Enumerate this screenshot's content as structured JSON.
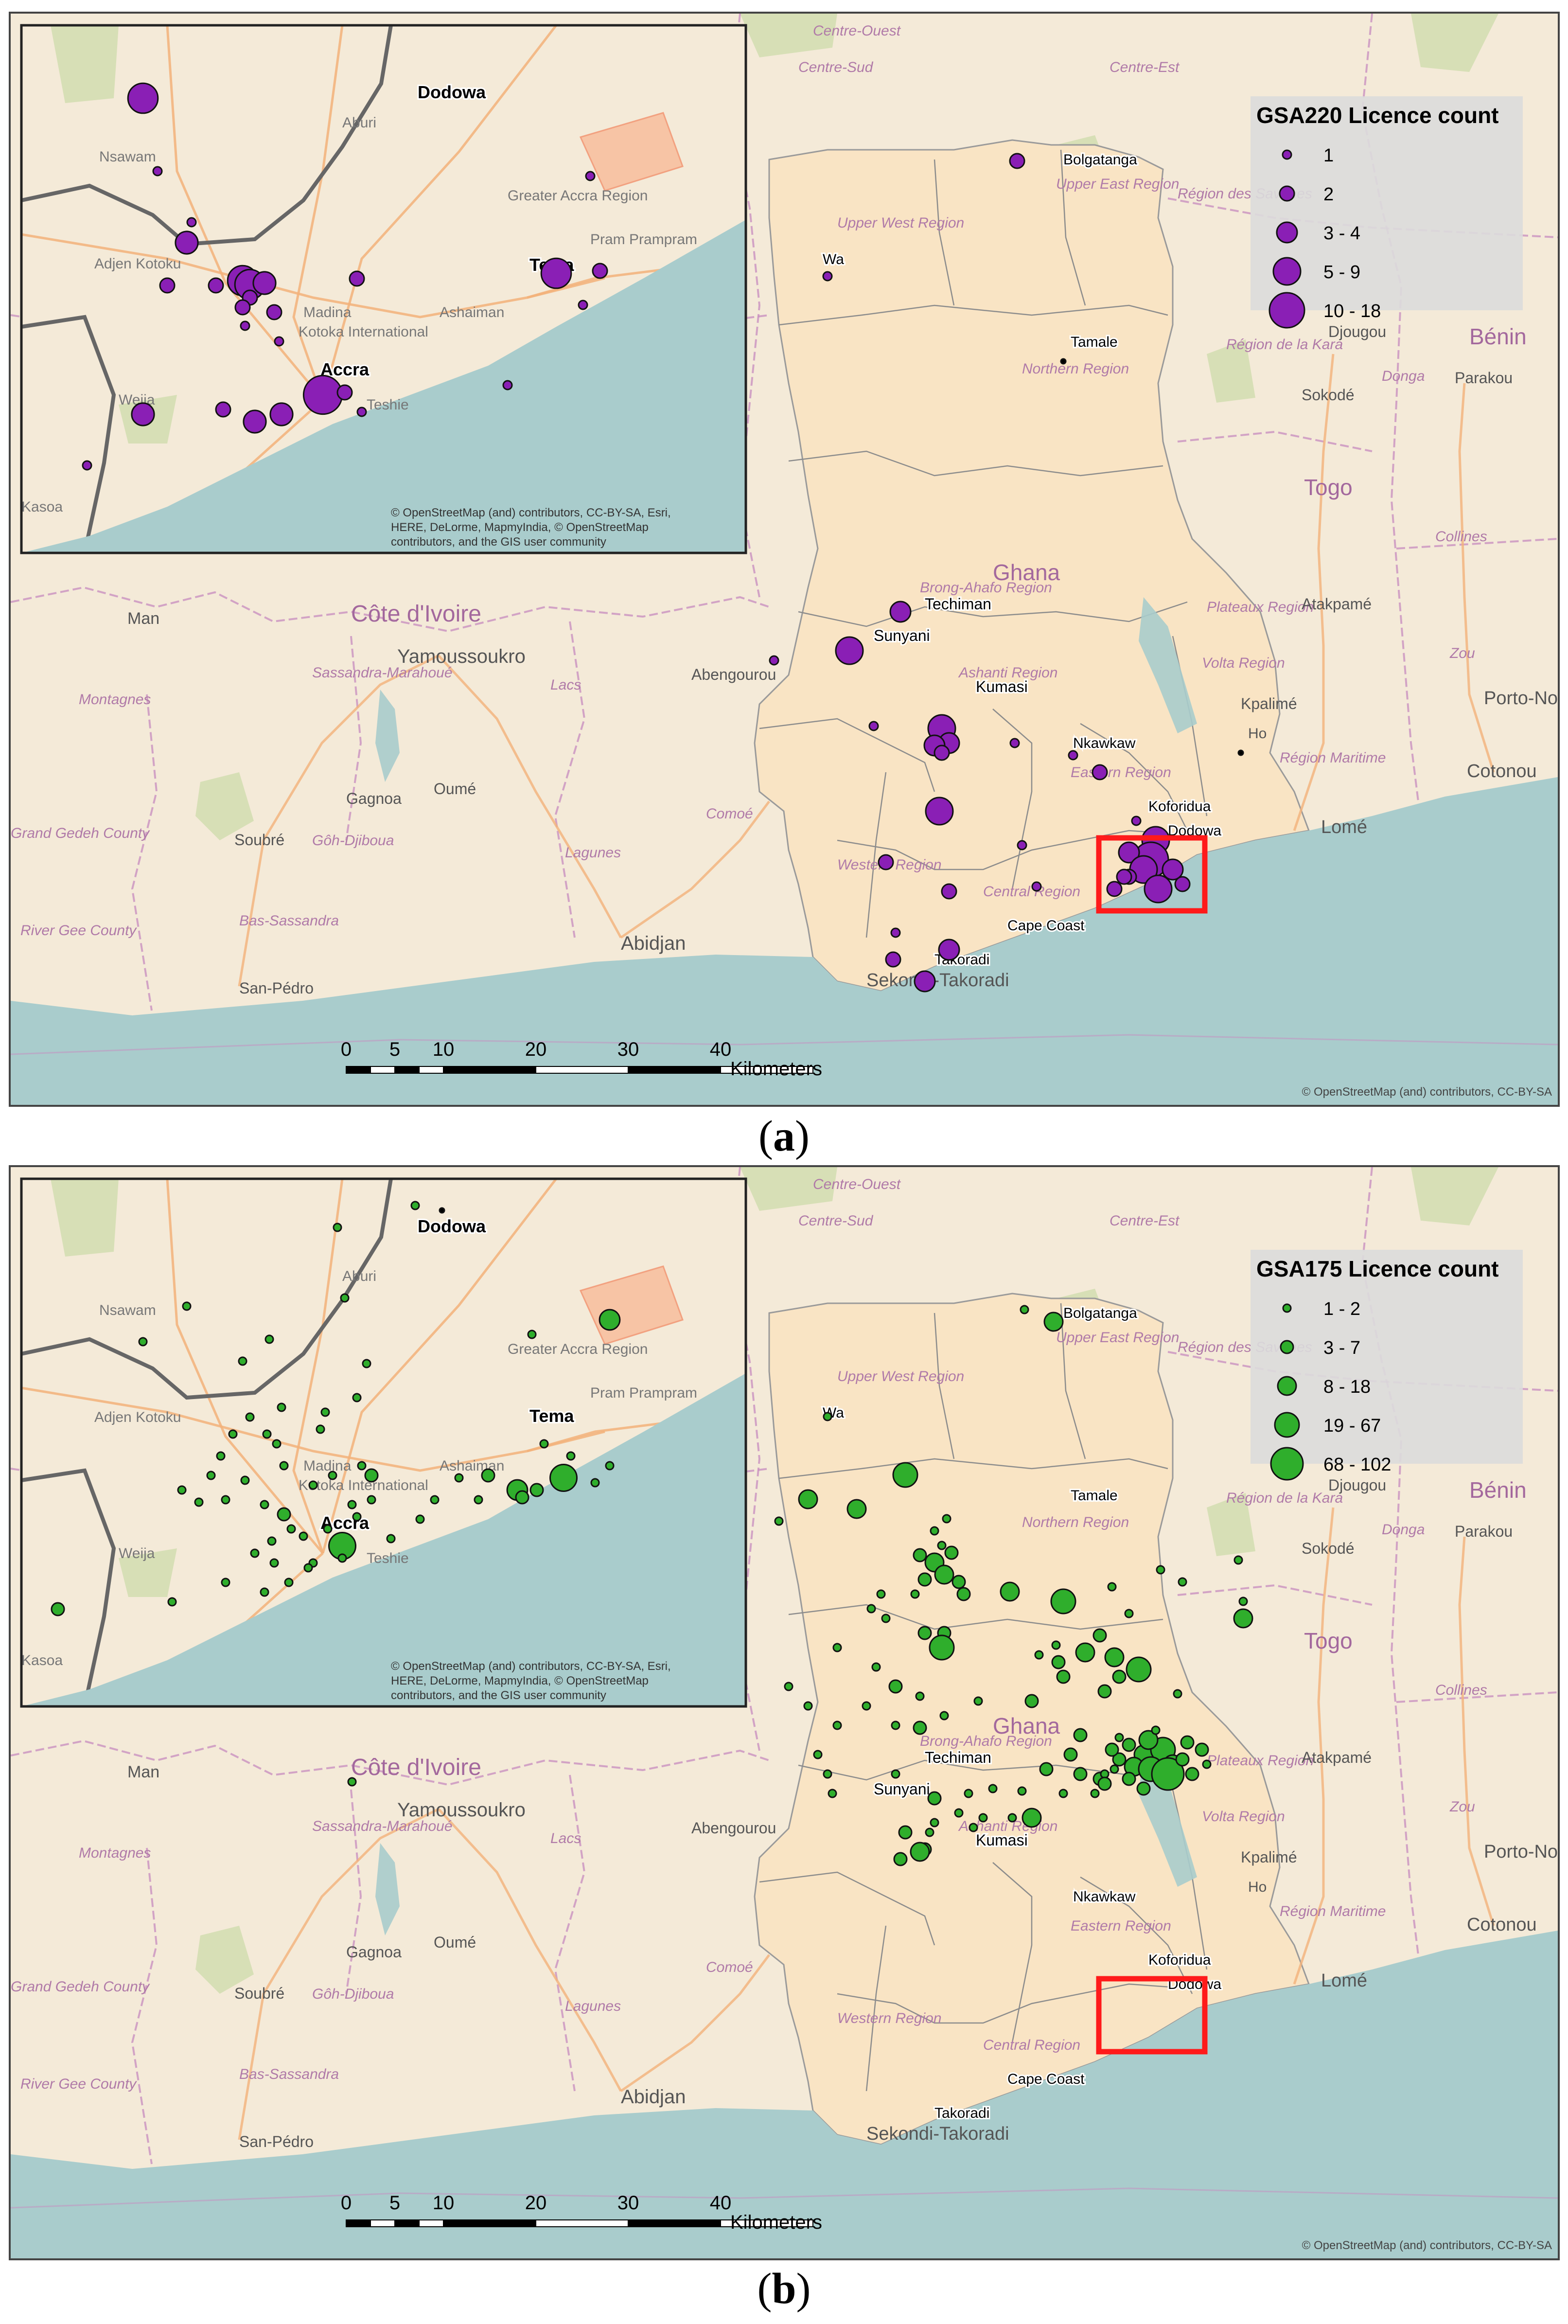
{
  "figures": [
    {
      "id": "a",
      "caption_letter": "a",
      "legend": {
        "title": "GSA220 Licence count",
        "classes": [
          "1",
          "2",
          "3 - 4",
          "5 - 9",
          "10 - 18"
        ]
      },
      "symbol_color": "#8a1fb5",
      "inset_place_labels": [
        "Dodowa",
        "Tema",
        "Accra"
      ],
      "attribution_inset": "© OpenStreetMap (and) contributors, CC-BY-SA, Esri, HERE, DeLorme, MapmyIndia, © OpenStreetMap contributors, and the GIS user community",
      "attribution_main": "© OpenStreetMap (and) contributors, CC-BY-SA"
    },
    {
      "id": "b",
      "caption_letter": "b",
      "legend": {
        "title": "GSA175 Licence count",
        "classes": [
          "1 - 2",
          "3 - 7",
          "8 - 18",
          "19 - 67",
          "68 - 102"
        ]
      },
      "symbol_color": "#2fae2c",
      "inset_place_labels": [
        "Dodowa",
        "Tema",
        "Accra"
      ],
      "attribution_inset": "© OpenStreetMap (and) contributors, CC-BY-SA, Esri, HERE, DeLorme, MapmyIndia, © OpenStreetMap contributors, and the GIS user community",
      "attribution_main": "© OpenStreetMap (and) contributors, CC-BY-SA"
    }
  ],
  "basemap_labels": {
    "countries": [
      "Côte d'Ivoire",
      "Ghana",
      "Togo",
      "Bénin"
    ],
    "cities": [
      "Yamoussoukro",
      "Abidjan",
      "Man",
      "Gagnoa",
      "Oumé",
      "Soubré",
      "San-Pédro",
      "Abengourou",
      "Sunyani",
      "Techiman",
      "Kumasi",
      "Tamale",
      "Bolgatanga",
      "Wa",
      "Nkawkaw",
      "Koforidua",
      "Dodowa",
      "Cape Coast",
      "Takoradi",
      "Sekondi-Takoradi",
      "Ho",
      "Kpalimé",
      "Lomé",
      "Atakpamé",
      "Sokodé",
      "Djougou",
      "Parakou",
      "Porto-Novo",
      "Cotonou"
    ],
    "regions": [
      "Centre-Ouest",
      "Centre-Sud",
      "Centre-Est",
      "Upper West Region",
      "Upper East Region",
      "Northern Region",
      "Région des Savanes",
      "Région de la Kara",
      "Donga",
      "Collines",
      "Zou",
      "Plateaux Region",
      "Volta Region",
      "Ashanti Region",
      "Eastern Region",
      "Western Region",
      "Central Region",
      "Région Maritime",
      "Montagnes",
      "Sassandra-Marahoué",
      "Lacs",
      "Gôh-Djiboua",
      "Lagunes",
      "Bas-Sassandra",
      "Comoé",
      "Brong-Ahafo Region",
      "River Gee County",
      "Grand Gedeh County"
    ],
    "inset_labels": [
      "Nsawam",
      "Aburi",
      "Adjen Kotoku",
      "Madina",
      "Ashaiman",
      "Pram Prampram",
      "Greater Accra Region",
      "Kotoka International",
      "Teshie",
      "Weija",
      "Kasoa"
    ]
  },
  "scale_bar": {
    "ticks": [
      "0",
      "5",
      "10",
      "20",
      "30",
      "40"
    ],
    "unit": "Kilometers"
  },
  "colors": {
    "land": "#f4ead8",
    "ghana": "#f9e4c4",
    "sea": "#a9cccc",
    "border": "#c78bbf",
    "road": "#f2b27a",
    "forest": "#cfdcae",
    "highlight_box": "#ff1a1a"
  }
}
